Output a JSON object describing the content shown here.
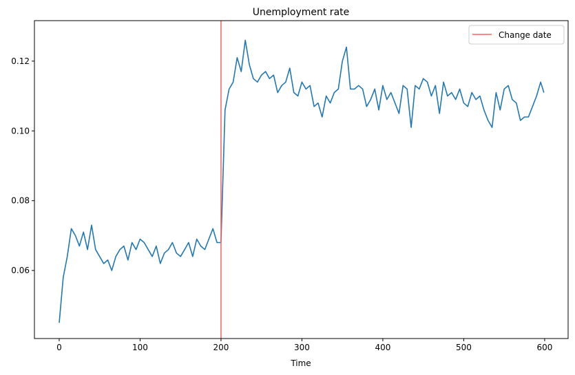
{
  "chart_data": {
    "type": "line",
    "title": "Unemployment rate",
    "xlabel": "Time",
    "ylabel": "",
    "xlim": [
      -30.6,
      629
    ],
    "ylim": [
      0.0405,
      0.1316
    ],
    "xticks": [
      0,
      100,
      200,
      300,
      400,
      500,
      600
    ],
    "yticks": [
      0.06,
      0.08,
      0.1,
      0.12
    ],
    "ytick_labels": [
      "0.06",
      "0.08",
      "0.10",
      "0.12"
    ],
    "grid": false,
    "legend": {
      "placement": "top-right",
      "entries": [
        "Change date"
      ]
    },
    "series_color": "#1f77b4",
    "vline": {
      "x": 200,
      "label": "Change date",
      "color": "#ff5e5e"
    },
    "series": [
      {
        "x": [
          0,
          5,
          10,
          15,
          20,
          25,
          30,
          35,
          40,
          45,
          50,
          55,
          60,
          65,
          70,
          75,
          80,
          85,
          90,
          95,
          100,
          105,
          110,
          115,
          120,
          125,
          130,
          135,
          140,
          145,
          150,
          155,
          160,
          165,
          170,
          175,
          180,
          185,
          190,
          195,
          200,
          205,
          210,
          215,
          220,
          225,
          230,
          235,
          240,
          245,
          250,
          255,
          260,
          265,
          270,
          275,
          280,
          285,
          290,
          295,
          300,
          305,
          310,
          315,
          320,
          325,
          330,
          335,
          340,
          345,
          350,
          355,
          360,
          365,
          370,
          375,
          380,
          385,
          390,
          395,
          400,
          405,
          410,
          415,
          420,
          425,
          430,
          435,
          440,
          445,
          450,
          455,
          460,
          465,
          470,
          475,
          480,
          485,
          490,
          495,
          500,
          505,
          510,
          515,
          520,
          525,
          530,
          535,
          540,
          545,
          550,
          555,
          560,
          565,
          570,
          575,
          580,
          585,
          590,
          595,
          599
        ],
        "values": [
          0.045,
          0.058,
          0.064,
          0.072,
          0.07,
          0.067,
          0.071,
          0.066,
          0.073,
          0.066,
          0.064,
          0.062,
          0.063,
          0.06,
          0.064,
          0.066,
          0.067,
          0.063,
          0.068,
          0.066,
          0.069,
          0.068,
          0.066,
          0.064,
          0.067,
          0.062,
          0.065,
          0.066,
          0.068,
          0.065,
          0.064,
          0.066,
          0.068,
          0.064,
          0.069,
          0.067,
          0.066,
          0.069,
          0.072,
          0.068,
          0.068,
          0.106,
          0.112,
          0.114,
          0.121,
          0.117,
          0.126,
          0.119,
          0.115,
          0.114,
          0.116,
          0.117,
          0.115,
          0.116,
          0.111,
          0.113,
          0.114,
          0.118,
          0.111,
          0.11,
          0.114,
          0.112,
          0.113,
          0.107,
          0.108,
          0.104,
          0.11,
          0.108,
          0.111,
          0.112,
          0.12,
          0.124,
          0.112,
          0.112,
          0.113,
          0.112,
          0.107,
          0.109,
          0.112,
          0.106,
          0.113,
          0.109,
          0.111,
          0.108,
          0.105,
          0.113,
          0.112,
          0.101,
          0.113,
          0.112,
          0.115,
          0.114,
          0.11,
          0.113,
          0.105,
          0.114,
          0.11,
          0.111,
          0.109,
          0.112,
          0.108,
          0.107,
          0.111,
          0.109,
          0.11,
          0.106,
          0.103,
          0.101,
          0.111,
          0.106,
          0.112,
          0.113,
          0.109,
          0.108,
          0.103,
          0.104,
          0.104,
          0.107,
          0.11,
          0.114,
          0.111
        ]
      }
    ]
  }
}
